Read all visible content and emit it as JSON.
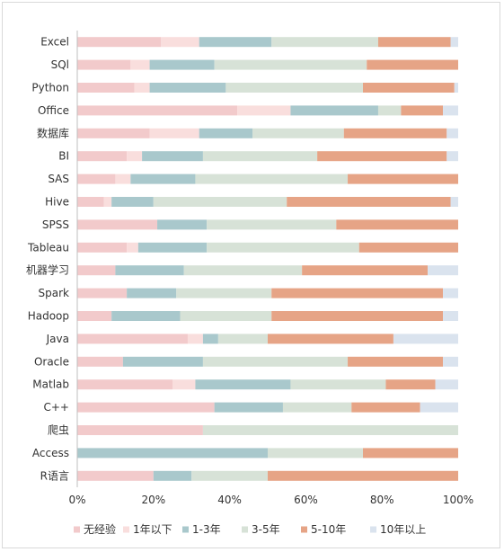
{
  "chart_data": {
    "type": "bar",
    "orientation": "horizontal",
    "stacked": "percent",
    "categories": [
      "Excel",
      "SQl",
      "Python",
      "Office",
      "数据库",
      "BI",
      "SAS",
      "Hive",
      "SPSS",
      "Tableau",
      "机器学习",
      "Spark",
      "Hadoop",
      "Java",
      "Oracle",
      "Matlab",
      "C++",
      "爬虫",
      "Access",
      "R语言"
    ],
    "series": [
      {
        "name": "无经验",
        "color": "#f2cacb",
        "values": [
          22,
          14,
          15,
          42,
          19,
          13,
          10,
          7,
          21,
          13,
          10,
          13,
          9,
          29,
          12,
          25,
          36,
          33,
          0,
          20
        ]
      },
      {
        "name": "1年以下",
        "color": "#f9dedd",
        "values": [
          10,
          5,
          4,
          14,
          13,
          4,
          4,
          2,
          0,
          3,
          0,
          0,
          0,
          4,
          0,
          6,
          0,
          0,
          0,
          0
        ]
      },
      {
        "name": "1-3年",
        "color": "#a9c8cc",
        "values": [
          19,
          17,
          20,
          23,
          14,
          16,
          17,
          11,
          13,
          18,
          18,
          13,
          18,
          4,
          21,
          25,
          18,
          0,
          50,
          10
        ]
      },
      {
        "name": "3-5年",
        "color": "#d7e2d7",
        "values": [
          28,
          40,
          36,
          6,
          24,
          30,
          40,
          35,
          34,
          40,
          31,
          25,
          24,
          13,
          38,
          25,
          18,
          67,
          25,
          20
        ]
      },
      {
        "name": "5-10年",
        "color": "#e6a486",
        "values": [
          19,
          24,
          24,
          11,
          27,
          34,
          29,
          43,
          32,
          26,
          33,
          45,
          45,
          33,
          25,
          13,
          18,
          0,
          25,
          50
        ]
      },
      {
        "name": "10年以上",
        "color": "#dae3ee",
        "values": [
          2,
          0,
          1,
          4,
          3,
          3,
          0,
          2,
          0,
          0,
          8,
          4,
          4,
          17,
          4,
          6,
          10,
          0,
          0,
          0
        ]
      }
    ],
    "x_ticks": [
      "0%",
      "20%",
      "40%",
      "60%",
      "80%",
      "100%"
    ],
    "xlim": [
      0,
      100
    ],
    "title": "",
    "xlabel": "",
    "ylabel": "",
    "grid": false,
    "legend_position": "bottom"
  }
}
